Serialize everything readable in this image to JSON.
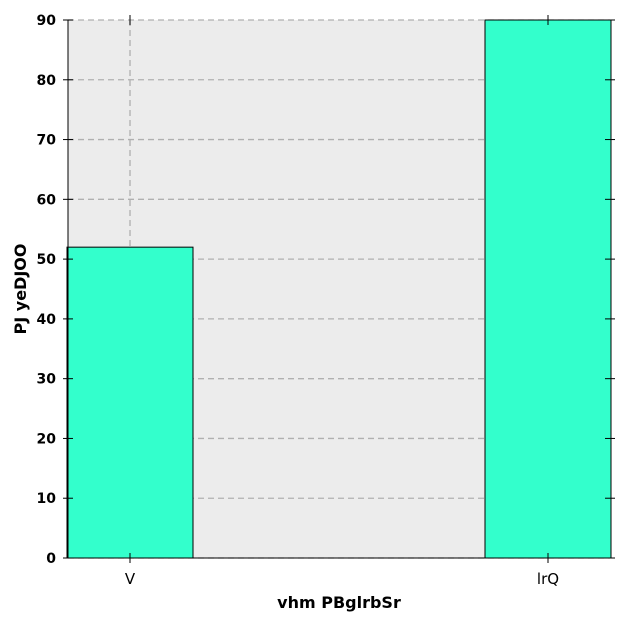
{
  "chart_data": {
    "type": "bar",
    "title": "",
    "xlabel": "vhm PBglrbSr",
    "ylabel": "PJ yeDJOO",
    "categories": [
      "V",
      "lrQ"
    ],
    "values": [
      52,
      90
    ],
    "ylim": [
      0,
      90
    ],
    "yticks": [
      0,
      10,
      20,
      30,
      40,
      50,
      60,
      70,
      80,
      90
    ],
    "grid": true,
    "legend": "none",
    "colors": {
      "bar": "#33ffcc",
      "plot_background": "#ececec",
      "grid": "#b0b0b0"
    }
  }
}
